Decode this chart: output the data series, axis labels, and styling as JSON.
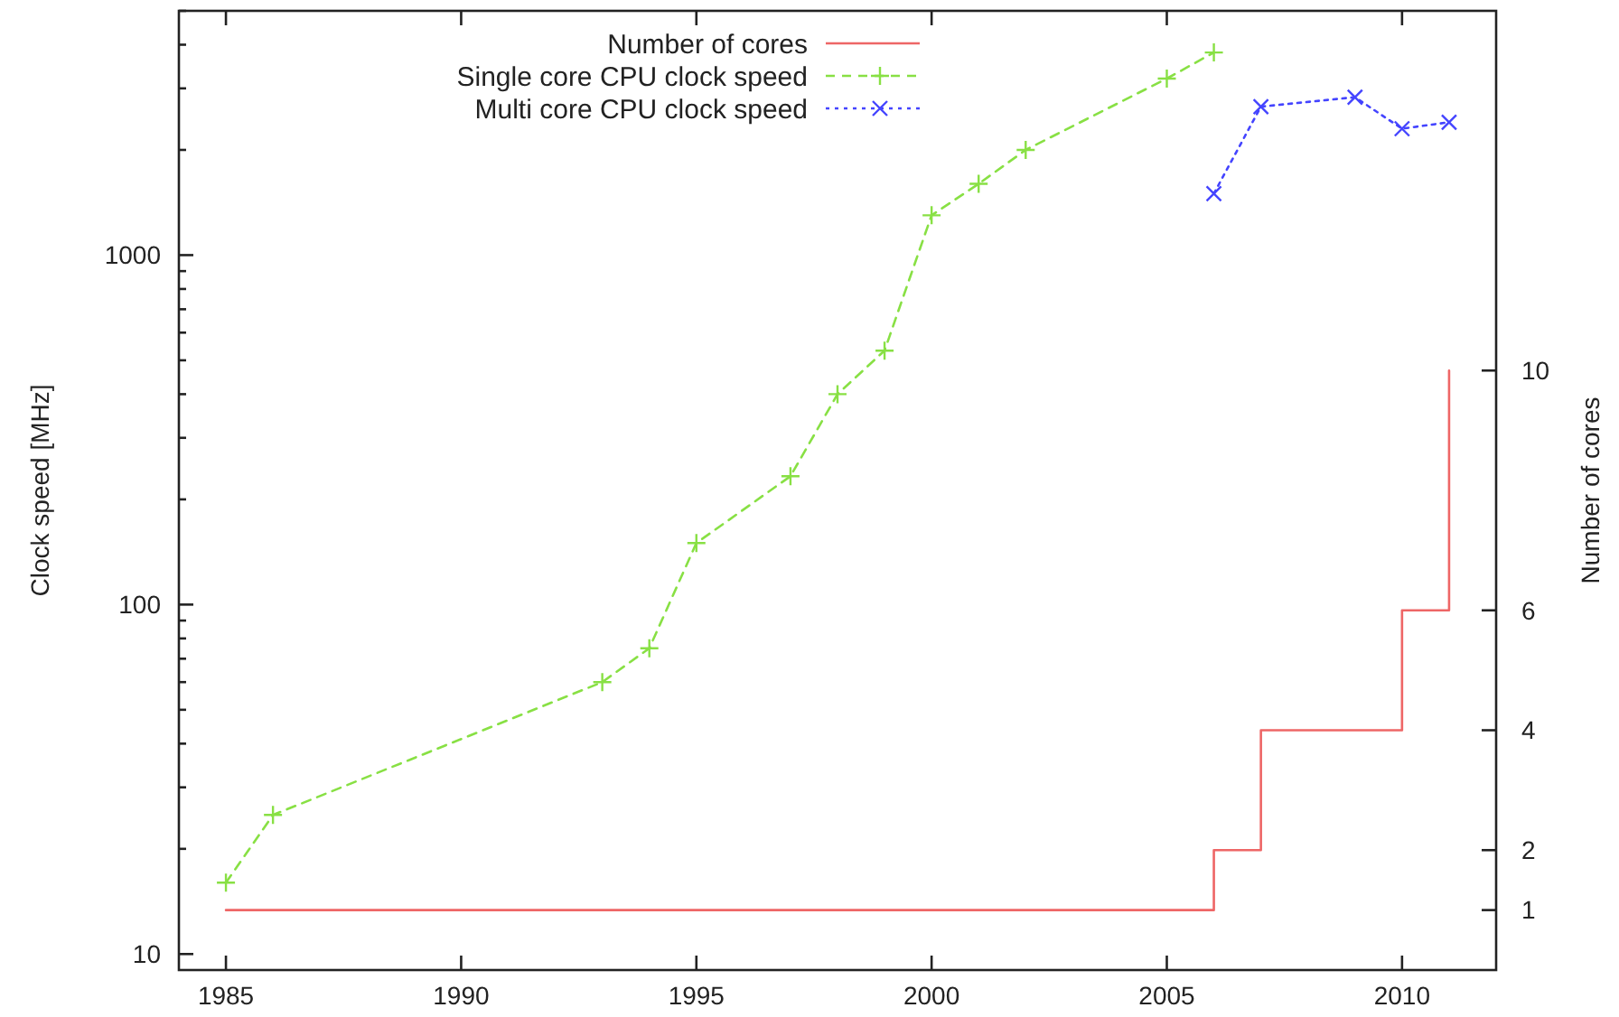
{
  "chart_data": {
    "type": "line",
    "ylabel": "Clock speed [MHz]",
    "y2label": "Number of cores",
    "xlim": [
      1984,
      2012
    ],
    "xticks": [
      1985,
      1990,
      1995,
      2000,
      2005,
      2010
    ],
    "ylim": [
      9,
      5000
    ],
    "log": true,
    "yticks": [
      10,
      {
        "value": 20,
        "label": null
      },
      {
        "value": 30,
        "label": null
      },
      {
        "value": 40,
        "label": null
      },
      {
        "value": 50,
        "label": null
      },
      {
        "value": 60,
        "label": null
      },
      {
        "value": 70,
        "label": null
      },
      {
        "value": 80,
        "label": null
      },
      {
        "value": 90,
        "label": null
      },
      100,
      {
        "value": 200,
        "label": null
      },
      {
        "value": 300,
        "label": null
      },
      {
        "value": 400,
        "label": null
      },
      {
        "value": 500,
        "label": null
      },
      {
        "value": 600,
        "label": null
      },
      {
        "value": 700,
        "label": null
      },
      {
        "value": 800,
        "label": null
      },
      {
        "value": 900,
        "label": null
      },
      1000,
      {
        "value": 2000,
        "label": null
      },
      {
        "value": 3000,
        "label": null
      },
      {
        "value": 4000,
        "label": null
      },
      {
        "value": 5000,
        "label": null
      }
    ],
    "y2lim": [
      0,
      16
    ],
    "y2ticks": [
      1,
      2,
      4,
      6,
      10
    ],
    "grid": false,
    "legend": "top",
    "series": [
      {
        "name": "Number of cores",
        "type": "step",
        "axis": "y2",
        "color": "#ee6666",
        "line_style": "solid",
        "marker": "none",
        "x": [
          1985,
          2006,
          2007,
          2010,
          2011
        ],
        "values": [
          1,
          2,
          4,
          6,
          10
        ]
      },
      {
        "name": "Single core CPU clock speed",
        "color": "#88e044",
        "line_style": "dashed",
        "marker": "plus",
        "x": [
          1985,
          1986,
          1993,
          1994,
          1995,
          1997,
          1998,
          1999,
          2000,
          2001,
          2002,
          2005,
          2006
        ],
        "values": [
          16,
          25,
          60,
          75,
          150,
          233,
          400,
          533,
          1300,
          1600,
          2000,
          3200,
          3800
        ]
      },
      {
        "name": "Multi core CPU clock speed",
        "color": "#4444ff",
        "line_style": "dotted",
        "marker": "cross",
        "x": [
          2006,
          2007,
          2009,
          2010,
          2011
        ],
        "values": [
          1500,
          2660,
          2830,
          2300,
          2400
        ]
      }
    ]
  }
}
